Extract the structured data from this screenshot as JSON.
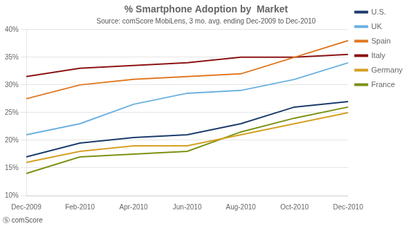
{
  "chart_data": {
    "type": "line",
    "title": "% Smartphone Adoption by  Market",
    "subtitle": "Source: comScore MobiLens, 3 mo. avg. ending Dec-2009 to Dec-2010",
    "annotations": [
      "Ⓢ comScore"
    ],
    "categories": [
      "Dec-2009",
      "Feb-2010",
      "Apr-2010",
      "Jun-2010",
      "Aug-2010",
      "Oct-2010",
      "Dec-2010"
    ],
    "series": [
      {
        "name": "U.S.",
        "color": "#1a3a6b",
        "values": [
          17,
          19.5,
          20.5,
          21,
          23,
          26,
          27
        ]
      },
      {
        "name": "UK",
        "color": "#6ab0e0",
        "values": [
          21,
          23,
          26.5,
          28.5,
          29,
          31,
          34
        ]
      },
      {
        "name": "Spain",
        "color": "#e07820",
        "values": [
          27.5,
          30,
          31,
          31.5,
          32,
          35,
          38
        ]
      },
      {
        "name": "Italy",
        "color": "#8b1010",
        "values": [
          31.5,
          33,
          33.5,
          34,
          35,
          35,
          35.5
        ]
      },
      {
        "name": "Germany",
        "color": "#d4a020",
        "values": [
          16,
          18,
          19,
          19,
          21,
          23,
          25
        ]
      },
      {
        "name": "France",
        "color": "#7a9010",
        "values": [
          14,
          17,
          17.5,
          18,
          21.5,
          24,
          26
        ]
      }
    ],
    "ylim": [
      10,
      40
    ],
    "yticks": [
      {
        "value": 10,
        "label": "10%"
      },
      {
        "value": 15,
        "label": "15%"
      },
      {
        "value": 20,
        "label": "20%"
      },
      {
        "value": 25,
        "label": "25%"
      },
      {
        "value": 30,
        "label": "30%"
      },
      {
        "value": 35,
        "label": "35%"
      },
      {
        "value": 40,
        "label": "40%"
      }
    ],
    "grid": true,
    "legend": "right",
    "marker": "none"
  }
}
